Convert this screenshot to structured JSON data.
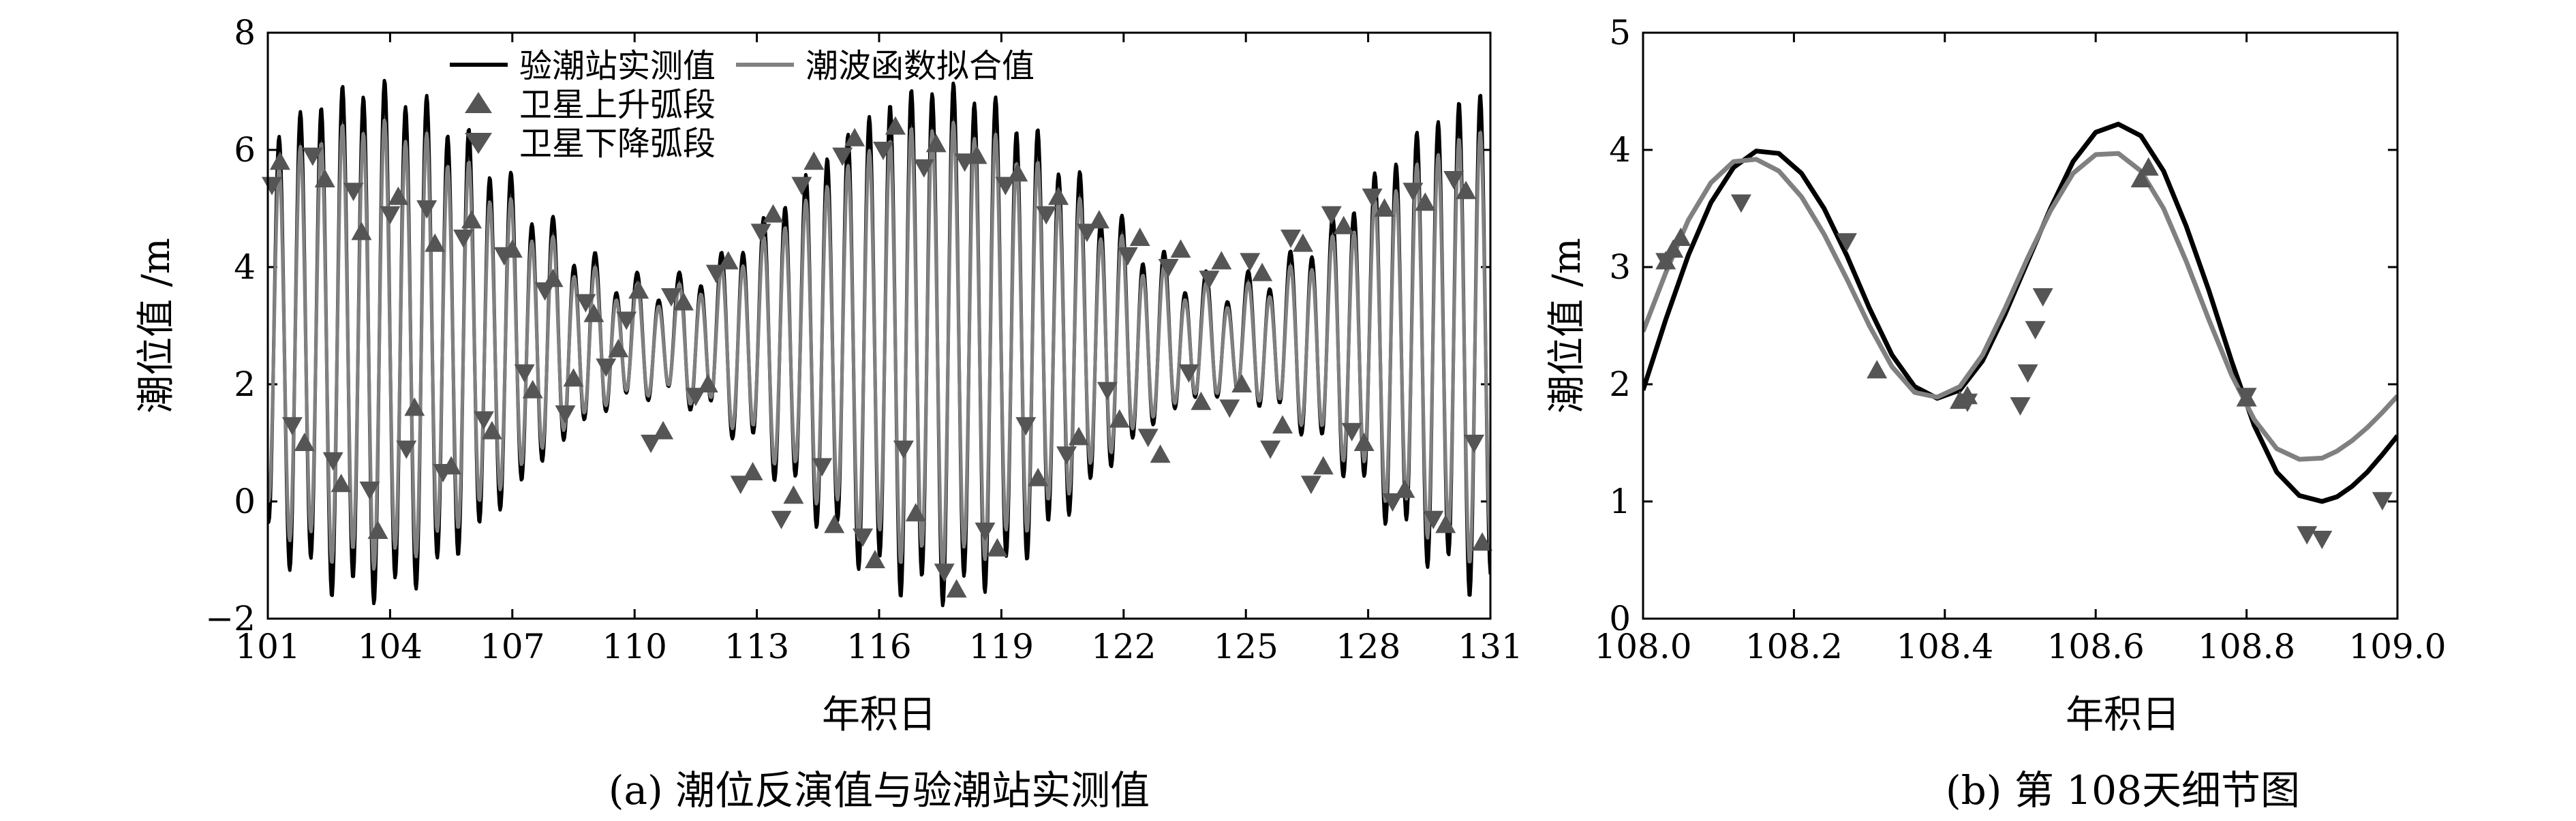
{
  "chart_data": [
    {
      "type": "line",
      "panel_id": "a",
      "caption": "(a) 潮位反演值与验潮站实测值",
      "xlabel": "年积日",
      "ylabel": "潮位值 /m",
      "xlim": [
        101,
        131
      ],
      "ylim": [
        -2,
        8
      ],
      "x_ticks": [
        101,
        104,
        107,
        110,
        113,
        116,
        119,
        122,
        125,
        128,
        131
      ],
      "x_tick_labels": [
        "101",
        "104",
        "107",
        "110",
        "113",
        "116",
        "119",
        "122",
        "125",
        "128",
        "131"
      ],
      "y_ticks": [
        -2,
        0,
        2,
        4,
        6,
        8
      ],
      "y_tick_labels": [
        "−2",
        "0",
        "2",
        "4",
        "6",
        "8"
      ],
      "legend_position": "top",
      "series": [
        {
          "name": "验潮站实测值",
          "kind": "line",
          "color": "#000000",
          "model": {
            "mean": 2.75,
            "semi_diurnal_period_days": 0.517,
            "diurnal_period_days": 1.0,
            "phase_day": 108.0,
            "spring_tide_days": [
              103.5,
              117.5
            ],
            "neap_tide_days": [
              110.0,
              125.5
            ],
            "amplitude_range_m": [
              0.9,
              4.3
            ],
            "diurnal_amplitude_m": 0.25
          }
        },
        {
          "name": "潮波函数拟合值",
          "kind": "line",
          "color": "#808080",
          "model": {
            "mean": 2.7,
            "semi_diurnal_period_days": 0.517,
            "diurnal_period_days": 1.0,
            "phase_day": 108.0,
            "spring_tide_days": [
              103.5,
              117.5
            ],
            "neap_tide_days": [
              110.0,
              125.5
            ],
            "amplitude_range_m": [
              0.8,
              3.7
            ],
            "diurnal_amplitude_m": 0.2
          }
        },
        {
          "name": "卫星上升弧段",
          "kind": "marker",
          "marker": "triangle-up",
          "color": "#555555",
          "x": [
            101.3,
            101.9,
            102.4,
            102.8,
            103.3,
            103.7,
            104.2,
            104.6,
            105.1,
            105.5,
            106.0,
            106.5,
            107.0,
            107.5,
            108.0,
            108.5,
            109.0,
            109.6,
            110.1,
            110.7,
            111.2,
            111.8,
            112.3,
            112.9,
            113.4,
            113.9,
            114.4,
            114.9,
            115.4,
            115.9,
            116.4,
            116.9,
            117.4,
            117.9,
            118.4,
            118.9,
            119.4,
            119.9,
            120.4,
            120.9,
            121.4,
            121.9,
            122.4,
            122.9,
            123.4,
            123.9,
            124.4,
            124.9,
            125.4,
            125.9,
            126.4,
            126.9,
            127.4,
            127.9,
            128.4,
            128.9,
            129.4,
            129.9,
            130.4,
            130.8
          ],
          "y": [
            5.8,
            1.0,
            5.5,
            0.3,
            4.6,
            -0.5,
            5.2,
            1.6,
            4.4,
            0.6,
            4.8,
            1.2,
            4.3,
            1.9,
            3.8,
            2.1,
            3.2,
            2.6,
            3.6,
            1.2,
            3.4,
            2.0,
            4.1,
            0.5,
            4.9,
            0.1,
            5.8,
            -0.4,
            6.2,
            -1.0,
            6.4,
            -0.2,
            6.1,
            -1.5,
            5.9,
            -0.8,
            5.6,
            0.4,
            5.2,
            1.1,
            4.8,
            1.4,
            4.5,
            0.8,
            4.3,
            1.7,
            4.1,
            2.0,
            3.9,
            1.3,
            4.4,
            0.6,
            4.7,
            1.0,
            5.0,
            0.2,
            5.1,
            -0.4,
            5.3,
            -0.7
          ]
        },
        {
          "name": "卫星下降弧段",
          "kind": "marker",
          "marker": "triangle-down",
          "color": "#555555",
          "x": [
            101.1,
            101.6,
            102.1,
            102.6,
            103.1,
            103.5,
            104.0,
            104.4,
            104.9,
            105.3,
            105.8,
            106.3,
            106.8,
            107.3,
            107.8,
            108.3,
            108.8,
            109.3,
            109.8,
            110.4,
            110.9,
            111.5,
            112.0,
            112.6,
            113.1,
            113.6,
            114.1,
            114.6,
            115.1,
            115.6,
            116.1,
            116.6,
            117.1,
            117.6,
            118.1,
            118.6,
            119.1,
            119.6,
            120.1,
            120.6,
            121.1,
            121.6,
            122.1,
            122.6,
            123.1,
            123.6,
            124.1,
            124.6,
            125.1,
            125.6,
            126.1,
            126.6,
            127.1,
            127.6,
            128.1,
            128.6,
            129.1,
            129.6,
            130.1,
            130.6
          ],
          "y": [
            5.4,
            1.3,
            5.9,
            0.7,
            5.3,
            0.2,
            4.9,
            0.9,
            5.0,
            0.5,
            4.5,
            1.4,
            4.2,
            2.2,
            3.6,
            1.5,
            3.4,
            2.3,
            3.1,
            1.0,
            3.5,
            1.8,
            3.9,
            0.3,
            4.6,
            -0.3,
            5.4,
            0.6,
            5.9,
            -0.6,
            6.0,
            0.9,
            5.7,
            -1.2,
            5.8,
            -0.5,
            5.4,
            1.3,
            4.9,
            0.8,
            4.6,
            1.9,
            4.2,
            1.1,
            4.0,
            2.2,
            3.8,
            1.6,
            4.1,
            0.9,
            4.5,
            0.3,
            4.9,
            1.2,
            5.2,
            0.0,
            5.3,
            -0.3,
            5.5,
            1.0
          ]
        }
      ]
    },
    {
      "type": "line",
      "panel_id": "b",
      "caption": "(b) 第 108天细节图",
      "xlabel": "年积日",
      "ylabel": "潮位值 /m",
      "xlim": [
        108.0,
        109.0
      ],
      "ylim": [
        0,
        5
      ],
      "x_ticks": [
        108.0,
        108.2,
        108.4,
        108.6,
        108.8,
        109.0
      ],
      "x_tick_labels": [
        "108.0",
        "108.2",
        "108.4",
        "108.6",
        "108.8",
        "109.0"
      ],
      "y_ticks": [
        0,
        1,
        2,
        3,
        4,
        5
      ],
      "y_tick_labels": [
        "0",
        "1",
        "2",
        "3",
        "4",
        "5"
      ],
      "series": [
        {
          "name": "验潮站实测值",
          "kind": "line",
          "color": "#000000",
          "x": [
            108.0,
            108.03,
            108.06,
            108.09,
            108.12,
            108.15,
            108.18,
            108.21,
            108.24,
            108.27,
            108.3,
            108.33,
            108.36,
            108.39,
            108.42,
            108.45,
            108.48,
            108.51,
            108.54,
            108.57,
            108.6,
            108.63,
            108.66,
            108.69,
            108.72,
            108.75,
            108.78,
            108.81,
            108.84,
            108.87,
            108.9,
            108.92,
            108.94,
            108.96,
            108.98,
            109.0
          ],
          "y": [
            1.95,
            2.55,
            3.1,
            3.55,
            3.85,
            3.99,
            3.97,
            3.8,
            3.5,
            3.1,
            2.65,
            2.25,
            1.98,
            1.88,
            1.95,
            2.2,
            2.6,
            3.05,
            3.5,
            3.9,
            4.15,
            4.22,
            4.12,
            3.82,
            3.35,
            2.8,
            2.2,
            1.65,
            1.25,
            1.05,
            1.0,
            1.04,
            1.13,
            1.25,
            1.4,
            1.56
          ]
        },
        {
          "name": "潮波函数拟合值",
          "kind": "line",
          "color": "#808080",
          "x": [
            108.0,
            108.03,
            108.06,
            108.09,
            108.12,
            108.15,
            108.18,
            108.21,
            108.24,
            108.27,
            108.3,
            108.33,
            108.36,
            108.39,
            108.42,
            108.45,
            108.48,
            108.51,
            108.54,
            108.57,
            108.6,
            108.63,
            108.66,
            108.69,
            108.72,
            108.75,
            108.78,
            108.81,
            108.84,
            108.87,
            108.9,
            108.92,
            108.94,
            108.96,
            108.98,
            109.0
          ],
          "y": [
            2.45,
            2.95,
            3.4,
            3.72,
            3.9,
            3.92,
            3.82,
            3.6,
            3.28,
            2.9,
            2.5,
            2.15,
            1.93,
            1.89,
            1.98,
            2.25,
            2.65,
            3.08,
            3.48,
            3.8,
            3.96,
            3.97,
            3.82,
            3.5,
            3.05,
            2.55,
            2.08,
            1.7,
            1.45,
            1.36,
            1.37,
            1.43,
            1.52,
            1.63,
            1.76,
            1.9
          ]
        },
        {
          "name": "卫星上升弧段",
          "kind": "marker",
          "marker": "triangle-up",
          "color": "#555555",
          "x": [
            108.03,
            108.04,
            108.05,
            108.31,
            108.42,
            108.43,
            108.66,
            108.67,
            108.8
          ],
          "y": [
            3.05,
            3.15,
            3.25,
            2.12,
            1.86,
            1.9,
            3.75,
            3.85,
            1.88
          ]
        },
        {
          "name": "卫星下降弧段",
          "kind": "marker",
          "marker": "triangle-down",
          "color": "#555555",
          "x": [
            108.03,
            108.13,
            108.27,
            108.43,
            108.5,
            108.51,
            108.52,
            108.53,
            108.8,
            108.88,
            108.9,
            108.98
          ],
          "y": [
            3.05,
            3.55,
            3.22,
            1.85,
            1.82,
            2.1,
            2.47,
            2.75,
            1.9,
            0.72,
            0.68,
            1.01
          ]
        }
      ]
    }
  ]
}
